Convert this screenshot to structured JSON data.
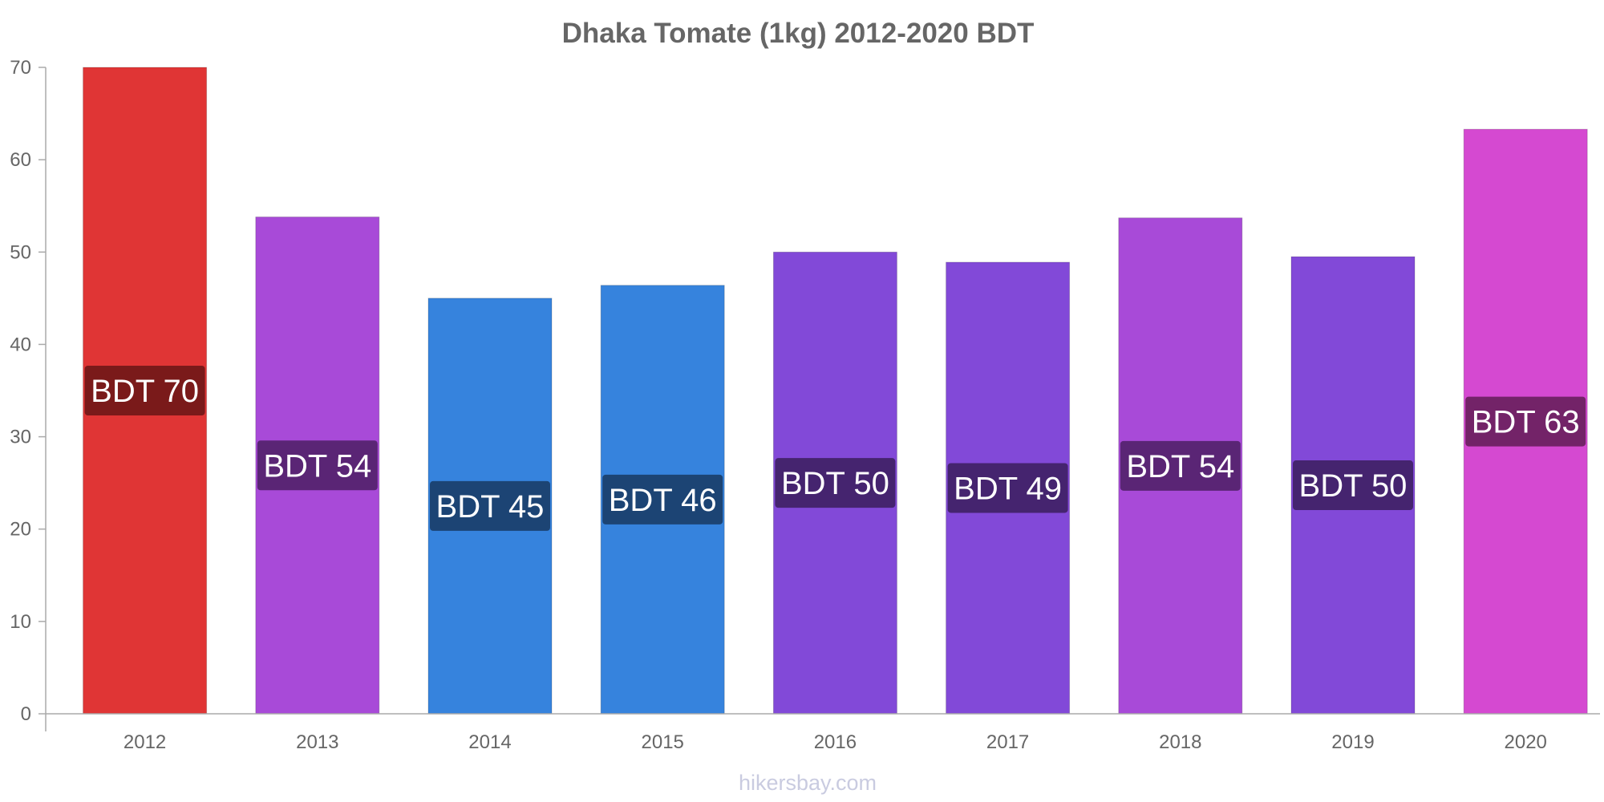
{
  "chart_data": {
    "type": "bar",
    "title": "Dhaka Tomate (1kg) 2012-2020 BDT",
    "xlabel": "",
    "ylabel": "",
    "ylim": [
      0,
      70
    ],
    "yticks": [
      0,
      10,
      20,
      30,
      40,
      50,
      60,
      70
    ],
    "categories": [
      "2012",
      "2013",
      "2014",
      "2015",
      "2016",
      "2017",
      "2018",
      "2019",
      "2020"
    ],
    "values": [
      70,
      53.8,
      45,
      46.4,
      50,
      48.9,
      53.7,
      49.5,
      63.3
    ],
    "data_labels": [
      "BDT 70",
      "BDT 54",
      "BDT 45",
      "BDT 46",
      "BDT 50",
      "BDT 49",
      "BDT 54",
      "BDT 50",
      "BDT 63"
    ],
    "bar_colors": [
      "#e03535",
      "#a84ad8",
      "#3683dd",
      "#3683dd",
      "#8249d8",
      "#8249d8",
      "#a84ad8",
      "#8249d8",
      "#d549d1"
    ],
    "label_bg_colors": [
      "#7a1a1a",
      "#5a2575",
      "#1c4474",
      "#1c4474",
      "#45246f",
      "#45246f",
      "#5a2575",
      "#45246f",
      "#732368"
    ],
    "grid": false,
    "legend": "none"
  },
  "watermark": "hikersbay.com"
}
